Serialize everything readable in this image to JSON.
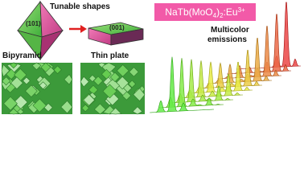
{
  "labels": {
    "tunable": "Tunable shapes",
    "facet_bipyramid": "(101)",
    "facet_plate": "(001)",
    "bipyramid": "Bipyramid",
    "thin_plate": "Thin plate",
    "emissions": [
      "Multicolor",
      "emissions"
    ]
  },
  "formula": {
    "parts": [
      "NaTb(MoO",
      "4",
      ")",
      "2",
      ":Eu",
      "3+"
    ]
  }
}
